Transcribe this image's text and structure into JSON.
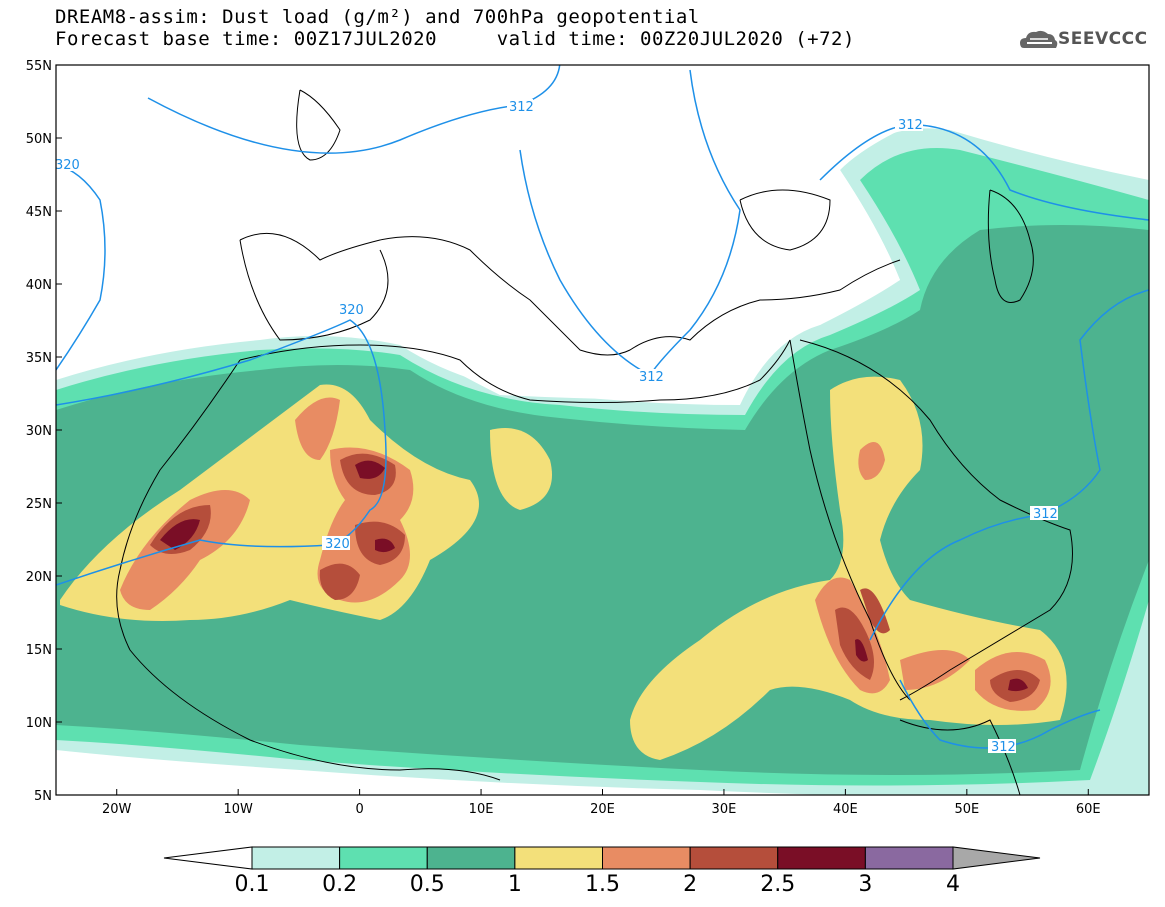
{
  "title": {
    "line1": "DREAM8-assim: Dust load (g/m²) and 700hPa geopotential",
    "line2": "Forecast base time: 00Z17JUL2020     valid time: 00Z20JUL2020 (+72)"
  },
  "logo": {
    "text": "SEEVCCC",
    "icon": "cloud-logo-icon"
  },
  "map": {
    "extent": {
      "lon": [
        -25,
        65
      ],
      "lat": [
        5,
        55
      ]
    },
    "lat_ticks": [
      "55N",
      "50N",
      "45N",
      "40N",
      "35N",
      "30N",
      "25N",
      "20N",
      "15N",
      "10N",
      "5N"
    ],
    "lon_ticks": [
      "20W",
      "10W",
      "0",
      "10E",
      "20E",
      "30E",
      "40E",
      "50E",
      "60E"
    ],
    "contour_labels": [
      "312",
      "320",
      "320",
      "320",
      "312",
      "312",
      "312",
      "312"
    ]
  },
  "colorbar": {
    "levels": [
      "0.1",
      "0.2",
      "0.5",
      "1",
      "1.5",
      "2",
      "2.5",
      "3",
      "4"
    ],
    "colors": [
      "#c2efe6",
      "#5ee0b0",
      "#4db38f",
      "#f3e07a",
      "#e88c63",
      "#b54e3b",
      "#7a0e26",
      "#8a69a0",
      "#a8a8a8"
    ],
    "under_color": "#ffffff",
    "over_color": "#a8a8a8"
  },
  "colors": {
    "contour": "#1e90e8",
    "coastline": "#000000"
  }
}
